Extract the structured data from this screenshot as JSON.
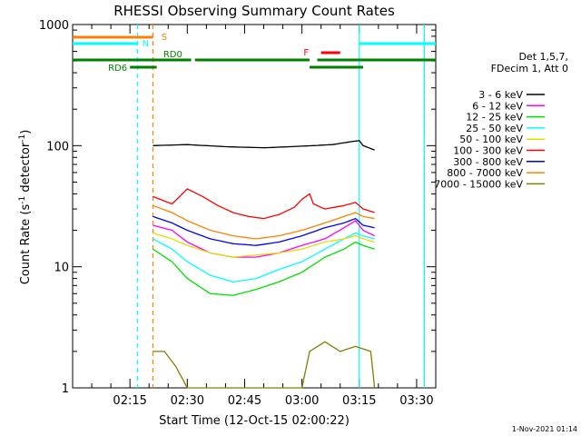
{
  "chart_data": {
    "type": "line",
    "title": "RHESSI Observing Summary Count Rates",
    "xlabel": "Start Time (12-Oct-15 02:00:22)",
    "ylabel_main": "Count Rate (s",
    "ylabel_sup1": "-1",
    "ylabel_mid": " detector",
    "ylabel_sup2": "-1",
    "ylabel_end": ")",
    "y_scale": "log",
    "ylim": [
      1,
      1000
    ],
    "xlim_minutes": [
      0,
      95
    ],
    "y_ticks": [
      "1",
      "10",
      "100",
      "1000"
    ],
    "x_ticks": [
      {
        "t": 15,
        "label": "02:15"
      },
      {
        "t": 30,
        "label": "02:30"
      },
      {
        "t": 45,
        "label": "02:45"
      },
      {
        "t": 60,
        "label": "03:00"
      },
      {
        "t": 75,
        "label": "03:15"
      },
      {
        "t": 90,
        "label": "03:30"
      }
    ],
    "legend_header": [
      "Det 1,5,7,",
      "FDecim 1, Att 0"
    ],
    "series": [
      {
        "name": "3 - 6 keV",
        "color": "#000000",
        "points": [
          [
            21,
            100
          ],
          [
            30,
            102
          ],
          [
            40,
            98
          ],
          [
            50,
            96
          ],
          [
            60,
            99
          ],
          [
            68,
            102
          ],
          [
            73,
            108
          ],
          [
            75,
            110
          ],
          [
            76,
            100
          ],
          [
            79,
            92
          ]
        ]
      },
      {
        "name": "6 - 12 keV",
        "color": "#ff00ff",
        "points": [
          [
            21,
            22
          ],
          [
            26,
            20
          ],
          [
            30,
            16
          ],
          [
            36,
            13
          ],
          [
            42,
            12
          ],
          [
            48,
            12
          ],
          [
            54,
            13
          ],
          [
            60,
            15
          ],
          [
            66,
            17
          ],
          [
            71,
            21
          ],
          [
            74,
            24
          ],
          [
            76,
            20
          ],
          [
            79,
            18
          ]
        ]
      },
      {
        "name": "12 - 25 keV",
        "color": "#00e000",
        "points": [
          [
            21,
            14
          ],
          [
            26,
            11
          ],
          [
            30,
            8
          ],
          [
            36,
            6
          ],
          [
            42,
            5.8
          ],
          [
            48,
            6.5
          ],
          [
            54,
            7.5
          ],
          [
            60,
            9
          ],
          [
            66,
            12
          ],
          [
            71,
            14
          ],
          [
            74,
            16
          ],
          [
            76,
            15
          ],
          [
            79,
            14
          ]
        ]
      },
      {
        "name": "25 - 50 keV",
        "color": "#00ffff",
        "points": [
          [
            21,
            17
          ],
          [
            26,
            14
          ],
          [
            30,
            11
          ],
          [
            36,
            8.5
          ],
          [
            42,
            7.5
          ],
          [
            48,
            8
          ],
          [
            54,
            9.5
          ],
          [
            60,
            11
          ],
          [
            66,
            14
          ],
          [
            71,
            17
          ],
          [
            74,
            19
          ],
          [
            76,
            18
          ],
          [
            79,
            17
          ]
        ]
      },
      {
        "name": "50 - 100 keV",
        "color": "#e0e000",
        "points": [
          [
            21,
            19
          ],
          [
            26,
            17
          ],
          [
            30,
            15
          ],
          [
            36,
            13
          ],
          [
            42,
            12
          ],
          [
            48,
            12.5
          ],
          [
            54,
            13
          ],
          [
            60,
            14
          ],
          [
            66,
            16
          ],
          [
            71,
            17
          ],
          [
            74,
            18
          ],
          [
            76,
            17
          ],
          [
            79,
            16
          ]
        ]
      },
      {
        "name": "100 - 300 keV",
        "color": "#ff0000",
        "points": [
          [
            21,
            38
          ],
          [
            26,
            33
          ],
          [
            28,
            38
          ],
          [
            30,
            44
          ],
          [
            34,
            38
          ],
          [
            38,
            32
          ],
          [
            42,
            28
          ],
          [
            46,
            26
          ],
          [
            50,
            25
          ],
          [
            54,
            27
          ],
          [
            58,
            31
          ],
          [
            60,
            36
          ],
          [
            62,
            40
          ],
          [
            63,
            33
          ],
          [
            66,
            30
          ],
          [
            71,
            32
          ],
          [
            74,
            34
          ],
          [
            76,
            30
          ],
          [
            79,
            28
          ]
        ]
      },
      {
        "name": "300 - 800 keV",
        "color": "#0000ff",
        "points": [
          [
            21,
            26
          ],
          [
            26,
            23
          ],
          [
            30,
            20
          ],
          [
            36,
            17
          ],
          [
            42,
            15.5
          ],
          [
            48,
            15
          ],
          [
            54,
            16
          ],
          [
            60,
            18
          ],
          [
            66,
            21
          ],
          [
            71,
            23
          ],
          [
            74,
            25
          ],
          [
            76,
            22
          ],
          [
            79,
            21
          ]
        ]
      },
      {
        "name": "800 - 7000 keV",
        "color": "#ff8000",
        "points": [
          [
            21,
            32
          ],
          [
            26,
            28
          ],
          [
            30,
            24
          ],
          [
            36,
            20
          ],
          [
            42,
            18
          ],
          [
            48,
            17
          ],
          [
            54,
            18
          ],
          [
            60,
            20
          ],
          [
            66,
            23
          ],
          [
            71,
            26
          ],
          [
            74,
            28
          ],
          [
            76,
            26
          ],
          [
            79,
            25
          ]
        ]
      },
      {
        "name": "7000 - 15000 keV",
        "color": "#808000",
        "points": [
          [
            21,
            2
          ],
          [
            24,
            2
          ],
          [
            27,
            1.5
          ],
          [
            30,
            1
          ],
          [
            60,
            1
          ],
          [
            62,
            2
          ],
          [
            66,
            2.4
          ],
          [
            70,
            2
          ],
          [
            74,
            2.2
          ],
          [
            78,
            2
          ],
          [
            79,
            1
          ]
        ]
      }
    ],
    "flag_bars": [
      {
        "label": "S",
        "color": "#ff8000",
        "segments": [
          [
            0,
            21
          ]
        ]
      },
      {
        "label": "N",
        "color": "#00ffff",
        "segments": [
          [
            0,
            17
          ],
          [
            75,
            95
          ]
        ]
      },
      {
        "label": "F",
        "color": "#ff0000",
        "segments": [
          [
            65,
            70
          ]
        ]
      },
      {
        "label": "RD0",
        "color": "#008000",
        "segments": [
          [
            0,
            31
          ],
          [
            32,
            62
          ],
          [
            64,
            95
          ]
        ]
      },
      {
        "label": "RD6",
        "color": "#008000",
        "segments": [
          [
            15,
            22
          ],
          [
            62,
            76
          ]
        ]
      }
    ],
    "vlines": [
      {
        "t": 17,
        "color": "#00ffff",
        "style": "dashed"
      },
      {
        "t": 21,
        "color": "#ff8000",
        "style": "dashed"
      },
      {
        "t": 75,
        "color": "#00ffff",
        "style": "solid"
      },
      {
        "t": 92,
        "color": "#ff8000",
        "style": "dashed"
      },
      {
        "t": 92,
        "color": "#00ffff",
        "style": "solid"
      }
    ]
  },
  "footer_date": "1-Nov-2021 01:14"
}
